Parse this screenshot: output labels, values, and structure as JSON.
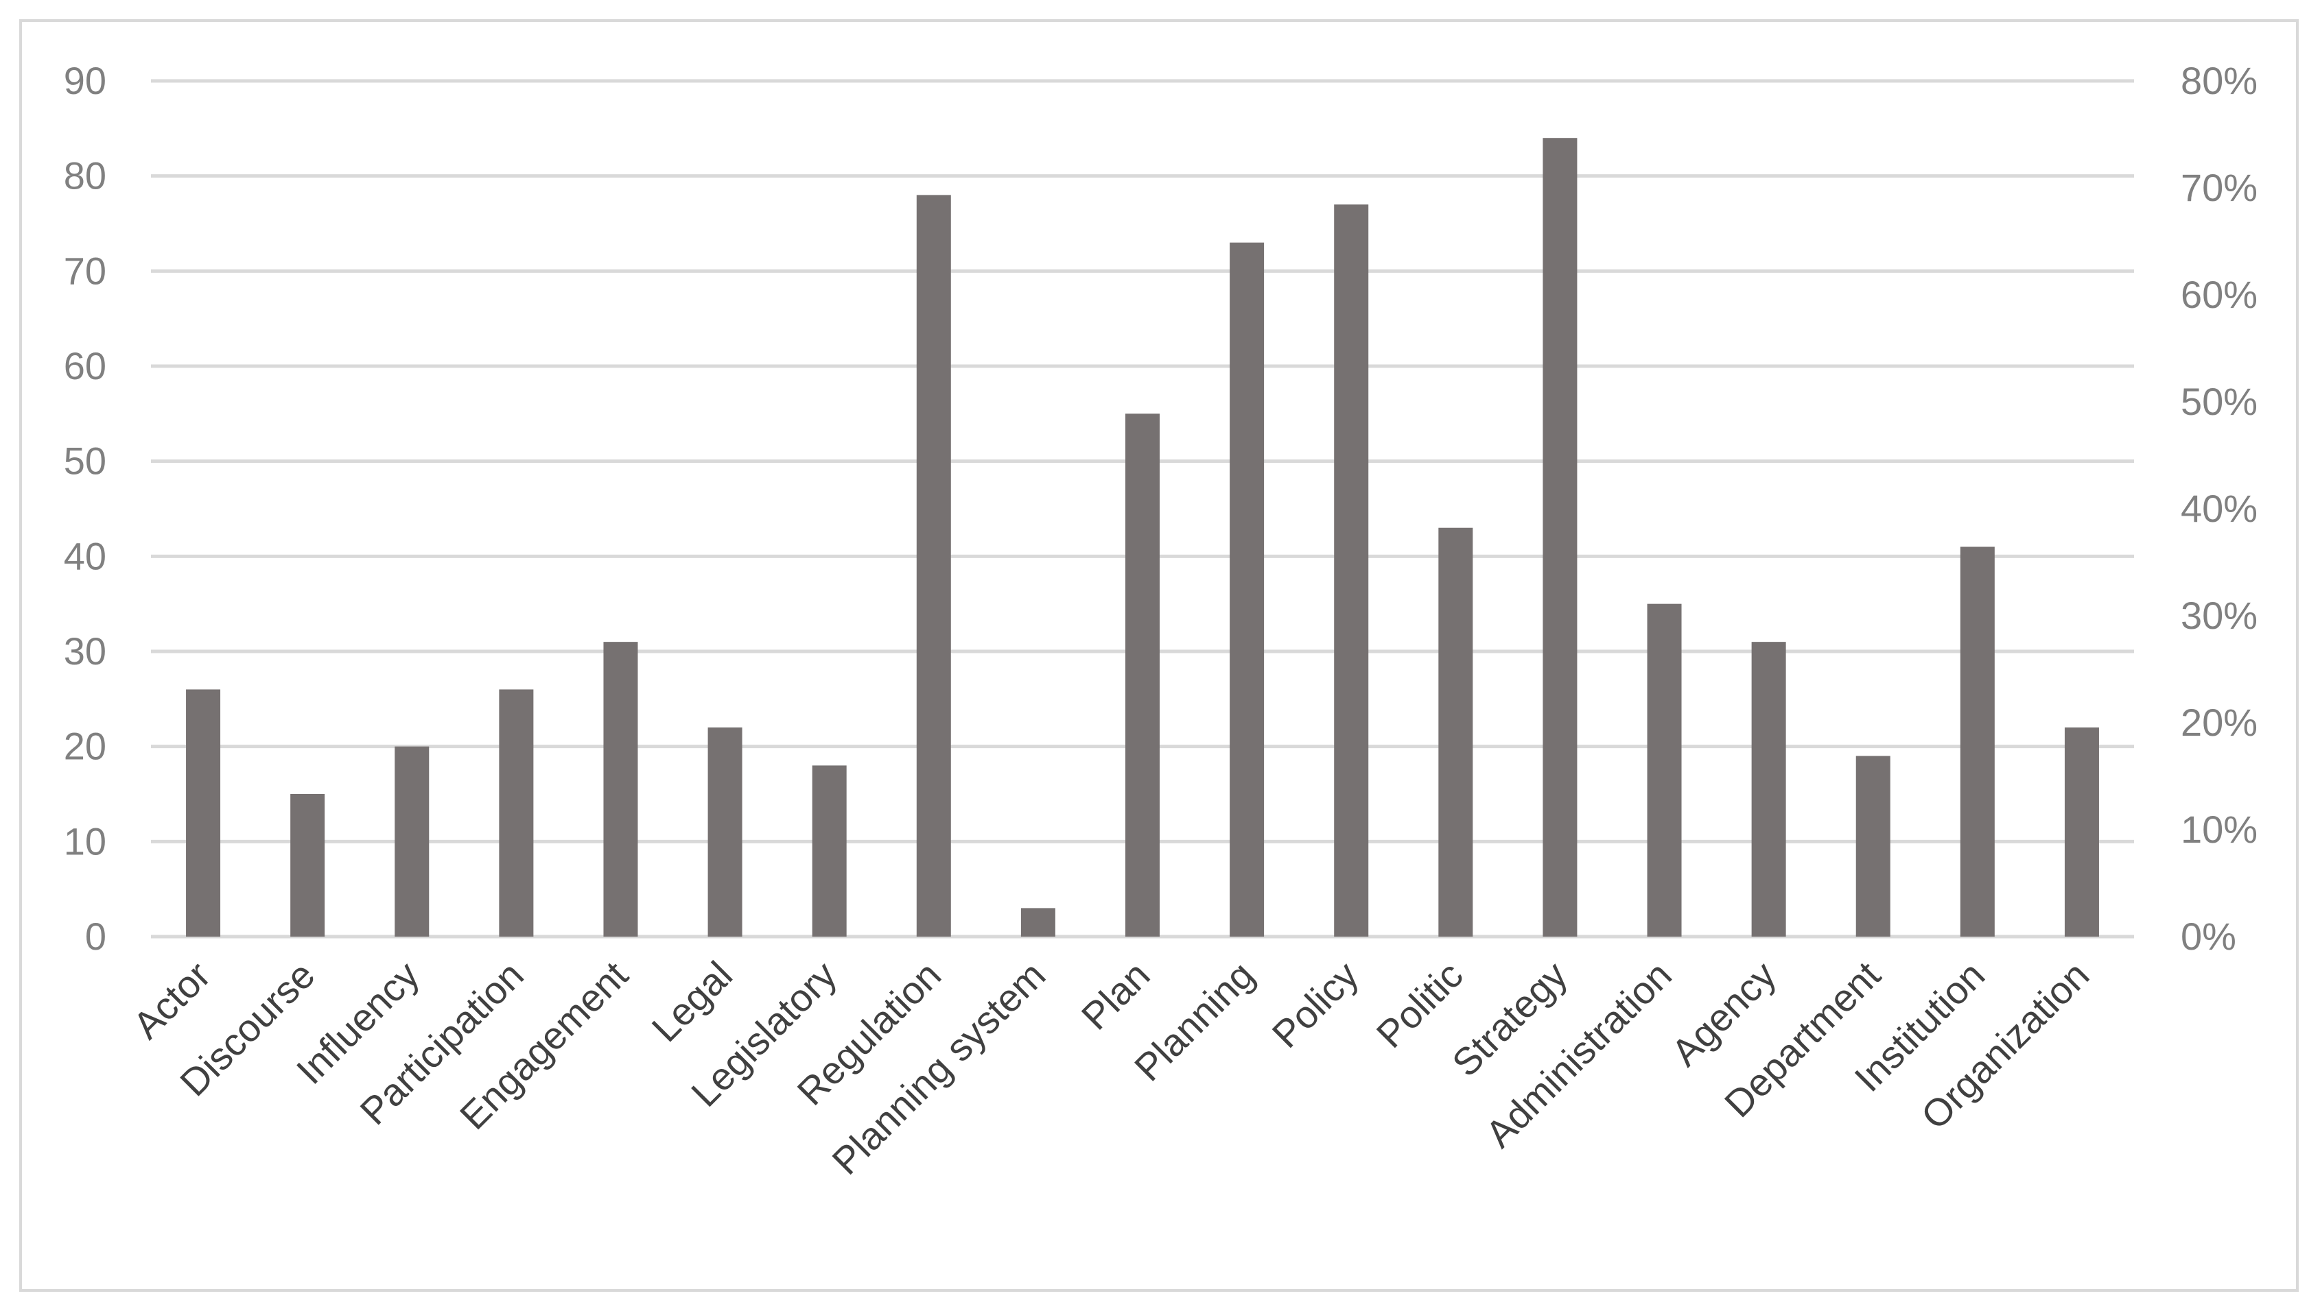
{
  "chart_data": {
    "type": "bar",
    "categories": [
      "Actor",
      "Discourse",
      "Influency",
      "Participation",
      "Engagement",
      "Legal",
      "Legislatory",
      "Regulation",
      "Planning system",
      "Plan",
      "Planning",
      "Policy",
      "Politic",
      "Strategy",
      "Administration",
      "Agency",
      "Department",
      "Institution",
      "Organization"
    ],
    "values": [
      26,
      15,
      20,
      26,
      31,
      22,
      18,
      78,
      3,
      55,
      73,
      77,
      43,
      84,
      35,
      31,
      19,
      41,
      22
    ],
    "title": "",
    "xlabel": "",
    "ylabel": "",
    "ylim": [
      0,
      90
    ],
    "y_ticks": [
      "0",
      "10",
      "20",
      "30",
      "40",
      "50",
      "60",
      "70",
      "80",
      "90"
    ],
    "y2lim": [
      0,
      0.8
    ],
    "y2_ticks": [
      "0%",
      "10%",
      "20%",
      "30%",
      "40%",
      "50%",
      "60%",
      "70%",
      "80%"
    ],
    "grid": true,
    "bar_color": "#767171",
    "grid_color": "#d9d9d9"
  }
}
